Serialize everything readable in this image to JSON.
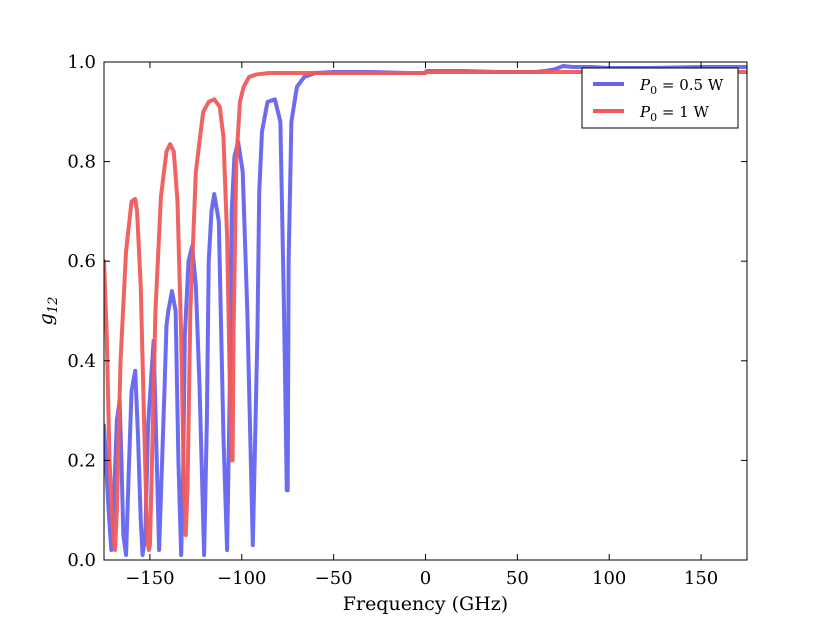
{
  "chart_data": {
    "type": "line",
    "title": "",
    "xlabel": "Frequency (GHz)",
    "ylabel": "g",
    "ylabel_subscript": "12",
    "xlim": [
      -175,
      175
    ],
    "ylim": [
      0.0,
      1.0
    ],
    "xticks": [
      -150,
      -100,
      -50,
      0,
      50,
      100,
      150
    ],
    "xtick_labels": [
      "−150",
      "−100",
      "−50",
      "0",
      "50",
      "100",
      "150"
    ],
    "yticks": [
      0.0,
      0.2,
      0.4,
      0.6,
      0.8,
      1.0
    ],
    "ytick_labels": [
      "0.0",
      "0.2",
      "0.4",
      "0.6",
      "0.8",
      "1.0"
    ],
    "grid": false,
    "legend_position": "top-right",
    "series": [
      {
        "name": "P0 = 0.5 W",
        "legend_math": "P",
        "legend_sub": "0",
        "legend_rest": " = 0.5 W",
        "color": "#6464f0",
        "x": [
          -175,
          -172.5,
          -171,
          -170,
          -168,
          -166.5,
          -165.5,
          -164.5,
          -163,
          -161.5,
          -160,
          -158,
          -156.5,
          -155,
          -154,
          -152.5,
          -151,
          -148,
          -145,
          -142,
          -141,
          -140,
          -138,
          -136,
          -134.5,
          -133,
          -132,
          -131,
          -129,
          -127,
          -125,
          -123,
          -120.5,
          -119,
          -118,
          -116.5,
          -115,
          -112.5,
          -110,
          -108,
          -106.5,
          -105.5,
          -104,
          -102,
          -99.5,
          -97,
          -94,
          -91.5,
          -90.5,
          -89,
          -86,
          -82,
          -79,
          -77,
          -75.5,
          -75,
          -74.5,
          -73,
          -70,
          -66,
          -60,
          -50,
          -30,
          -10,
          0,
          0.5,
          20,
          40,
          60,
          65,
          70,
          75,
          80,
          90,
          100,
          120,
          150,
          175
        ],
        "y": [
          0.27,
          0.1,
          0.02,
          0.08,
          0.28,
          0.32,
          0.2,
          0.05,
          0.01,
          0.18,
          0.34,
          0.38,
          0.25,
          0.08,
          0.01,
          0.05,
          0.27,
          0.44,
          0.02,
          0.35,
          0.47,
          0.5,
          0.54,
          0.5,
          0.2,
          0.01,
          0.15,
          0.45,
          0.6,
          0.63,
          0.55,
          0.35,
          0.01,
          0.28,
          0.6,
          0.7,
          0.735,
          0.68,
          0.25,
          0.02,
          0.35,
          0.7,
          0.81,
          0.84,
          0.78,
          0.5,
          0.03,
          0.45,
          0.74,
          0.86,
          0.92,
          0.925,
          0.88,
          0.5,
          0.14,
          0.14,
          0.6,
          0.88,
          0.95,
          0.97,
          0.978,
          0.98,
          0.98,
          0.978,
          0.978,
          0.982,
          0.982,
          0.98,
          0.98,
          0.982,
          0.985,
          0.992,
          0.99,
          0.99,
          0.988,
          0.988,
          0.99,
          0.99
        ]
      },
      {
        "name": "P0 = 1 W",
        "legend_math": "P",
        "legend_sub": "0",
        "legend_rest": " = 1 W",
        "color": "#f05a5a",
        "x": [
          -175,
          -173.5,
          -172,
          -170,
          -169,
          -168,
          -166,
          -163,
          -160,
          -158,
          -157,
          -155,
          -153,
          -151.5,
          -150.5,
          -150,
          -149,
          -147,
          -144,
          -141,
          -139,
          -137,
          -135,
          -133,
          -131.5,
          -130.5,
          -129.5,
          -128,
          -125,
          -121,
          -118,
          -115,
          -112,
          -110,
          -108,
          -106.5,
          -105.5,
          -105,
          -104.5,
          -103,
          -101,
          -99,
          -96,
          -92,
          -85,
          -75,
          -60,
          -40,
          -20,
          0,
          0.5,
          20,
          40,
          60,
          80,
          100,
          120,
          150,
          175
        ],
        "y": [
          0.6,
          0.45,
          0.2,
          0.05,
          0.02,
          0.1,
          0.4,
          0.62,
          0.72,
          0.725,
          0.7,
          0.55,
          0.25,
          0.04,
          0.02,
          0.03,
          0.18,
          0.5,
          0.73,
          0.82,
          0.835,
          0.82,
          0.72,
          0.45,
          0.15,
          0.05,
          0.15,
          0.5,
          0.78,
          0.9,
          0.92,
          0.925,
          0.91,
          0.85,
          0.65,
          0.35,
          0.2,
          0.2,
          0.45,
          0.8,
          0.92,
          0.95,
          0.97,
          0.975,
          0.978,
          0.978,
          0.978,
          0.978,
          0.978,
          0.978,
          0.98,
          0.98,
          0.98,
          0.98,
          0.98,
          0.98,
          0.98,
          0.98,
          0.98
        ]
      }
    ]
  }
}
